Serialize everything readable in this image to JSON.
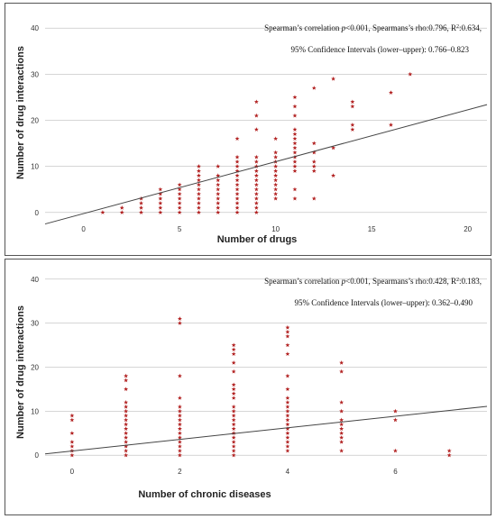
{
  "chart_data": [
    {
      "type": "scatter",
      "xlabel": "Number of drugs",
      "ylabel": "Number of drug interactions",
      "xlim": [
        -2,
        21
      ],
      "ylim": [
        -2,
        42
      ],
      "x_ticks": [
        0,
        5,
        10,
        15,
        20
      ],
      "y_ticks": [
        0,
        10,
        20,
        30,
        40
      ],
      "grid": "horizontal",
      "marker": "star",
      "marker_color": "#b22222",
      "line_color": "#444444",
      "annotation": {
        "line1_a": "Spearman’s correlation ",
        "line1_p": "p",
        "line1_b": "<0.001, Spearmans’s rho:0.796, R",
        "line1_sup": "2",
        "line1_c": ":0.634,",
        "line2": "95% Confidence Intervals (lower–upper): 0.766–0.823"
      },
      "fit_line": {
        "x": [
          -2,
          21
        ],
        "y": [
          -2.5,
          23.4
        ]
      },
      "points": [
        [
          1,
          0
        ],
        [
          2,
          0
        ],
        [
          2,
          1
        ],
        [
          3,
          0
        ],
        [
          3,
          1
        ],
        [
          3,
          2
        ],
        [
          3,
          3
        ],
        [
          4,
          0
        ],
        [
          4,
          1
        ],
        [
          4,
          2
        ],
        [
          4,
          3
        ],
        [
          4,
          4
        ],
        [
          4,
          5
        ],
        [
          5,
          0
        ],
        [
          5,
          1
        ],
        [
          5,
          2
        ],
        [
          5,
          3
        ],
        [
          5,
          4
        ],
        [
          5,
          5
        ],
        [
          5,
          6
        ],
        [
          6,
          0
        ],
        [
          6,
          1
        ],
        [
          6,
          2
        ],
        [
          6,
          3
        ],
        [
          6,
          4
        ],
        [
          6,
          5
        ],
        [
          6,
          6
        ],
        [
          6,
          7
        ],
        [
          6,
          8
        ],
        [
          6,
          9
        ],
        [
          6,
          10
        ],
        [
          7,
          0
        ],
        [
          7,
          1
        ],
        [
          7,
          2
        ],
        [
          7,
          3
        ],
        [
          7,
          4
        ],
        [
          7,
          5
        ],
        [
          7,
          6
        ],
        [
          7,
          7
        ],
        [
          7,
          8
        ],
        [
          7,
          10
        ],
        [
          8,
          0
        ],
        [
          8,
          1
        ],
        [
          8,
          2
        ],
        [
          8,
          3
        ],
        [
          8,
          4
        ],
        [
          8,
          5
        ],
        [
          8,
          6
        ],
        [
          8,
          7
        ],
        [
          8,
          8
        ],
        [
          8,
          9
        ],
        [
          8,
          10
        ],
        [
          8,
          11
        ],
        [
          8,
          12
        ],
        [
          8,
          16
        ],
        [
          9,
          0
        ],
        [
          9,
          1
        ],
        [
          9,
          2
        ],
        [
          9,
          3
        ],
        [
          9,
          4
        ],
        [
          9,
          5
        ],
        [
          9,
          6
        ],
        [
          9,
          7
        ],
        [
          9,
          8
        ],
        [
          9,
          9
        ],
        [
          9,
          10
        ],
        [
          9,
          11
        ],
        [
          9,
          12
        ],
        [
          9,
          18
        ],
        [
          9,
          21
        ],
        [
          9,
          24
        ],
        [
          10,
          3
        ],
        [
          10,
          4
        ],
        [
          10,
          5
        ],
        [
          10,
          6
        ],
        [
          10,
          7
        ],
        [
          10,
          8
        ],
        [
          10,
          9
        ],
        [
          10,
          10
        ],
        [
          10,
          11
        ],
        [
          10,
          12
        ],
        [
          10,
          13
        ],
        [
          10,
          16
        ],
        [
          11,
          3
        ],
        [
          11,
          5
        ],
        [
          11,
          9
        ],
        [
          11,
          10
        ],
        [
          11,
          11
        ],
        [
          11,
          12
        ],
        [
          11,
          13
        ],
        [
          11,
          14
        ],
        [
          11,
          15
        ],
        [
          11,
          16
        ],
        [
          11,
          17
        ],
        [
          11,
          18
        ],
        [
          11,
          21
        ],
        [
          11,
          23
        ],
        [
          11,
          25
        ],
        [
          12,
          3
        ],
        [
          12,
          9
        ],
        [
          12,
          10
        ],
        [
          12,
          11
        ],
        [
          12,
          13
        ],
        [
          12,
          15
        ],
        [
          12,
          27
        ],
        [
          13,
          8
        ],
        [
          13,
          14
        ],
        [
          13,
          29
        ],
        [
          14,
          18
        ],
        [
          14,
          19
        ],
        [
          14,
          23
        ],
        [
          14,
          24
        ],
        [
          16,
          19
        ],
        [
          16,
          26
        ],
        [
          17,
          30
        ]
      ]
    },
    {
      "type": "scatter",
      "xlabel": "Number of chronic diseases",
      "ylabel": "Number of drug interactions",
      "xlim": [
        -0.5,
        7.7
      ],
      "ylim": [
        -2,
        42
      ],
      "x_ticks": [
        0,
        2,
        4,
        6
      ],
      "y_ticks": [
        0,
        10,
        20,
        30,
        40
      ],
      "grid": "horizontal",
      "marker": "star",
      "marker_color": "#b22222",
      "line_color": "#444444",
      "annotation": {
        "line1_a": "Spearman’s correlation ",
        "line1_p": "p",
        "line1_b": "<0.001, Spearmans’s rho:0.428, R",
        "line1_sup": "2",
        "line1_c": ":0.183,",
        "line2": "95% Confidence Intervals (lower–upper): 0.362–0.490"
      },
      "fit_line": {
        "x": [
          -0.5,
          7.7
        ],
        "y": [
          0.3,
          11.1
        ]
      },
      "points": [
        [
          0,
          0
        ],
        [
          0,
          1
        ],
        [
          0,
          2
        ],
        [
          0,
          3
        ],
        [
          0,
          5
        ],
        [
          0,
          8
        ],
        [
          0,
          9
        ],
        [
          1,
          0
        ],
        [
          1,
          1
        ],
        [
          1,
          2
        ],
        [
          1,
          3
        ],
        [
          1,
          4
        ],
        [
          1,
          5
        ],
        [
          1,
          6
        ],
        [
          1,
          7
        ],
        [
          1,
          8
        ],
        [
          1,
          9
        ],
        [
          1,
          10
        ],
        [
          1,
          11
        ],
        [
          1,
          12
        ],
        [
          1,
          15
        ],
        [
          1,
          17
        ],
        [
          1,
          18
        ],
        [
          2,
          0
        ],
        [
          2,
          1
        ],
        [
          2,
          2
        ],
        [
          2,
          3
        ],
        [
          2,
          4
        ],
        [
          2,
          5
        ],
        [
          2,
          6
        ],
        [
          2,
          7
        ],
        [
          2,
          8
        ],
        [
          2,
          9
        ],
        [
          2,
          10
        ],
        [
          2,
          11
        ],
        [
          2,
          13
        ],
        [
          2,
          18
        ],
        [
          2,
          30
        ],
        [
          2,
          31
        ],
        [
          3,
          0
        ],
        [
          3,
          1
        ],
        [
          3,
          2
        ],
        [
          3,
          3
        ],
        [
          3,
          4
        ],
        [
          3,
          5
        ],
        [
          3,
          6
        ],
        [
          3,
          7
        ],
        [
          3,
          8
        ],
        [
          3,
          9
        ],
        [
          3,
          10
        ],
        [
          3,
          11
        ],
        [
          3,
          13
        ],
        [
          3,
          14
        ],
        [
          3,
          15
        ],
        [
          3,
          16
        ],
        [
          3,
          19
        ],
        [
          3,
          21
        ],
        [
          3,
          23
        ],
        [
          3,
          24
        ],
        [
          3,
          25
        ],
        [
          4,
          1
        ],
        [
          4,
          2
        ],
        [
          4,
          3
        ],
        [
          4,
          4
        ],
        [
          4,
          5
        ],
        [
          4,
          6
        ],
        [
          4,
          7
        ],
        [
          4,
          8
        ],
        [
          4,
          9
        ],
        [
          4,
          10
        ],
        [
          4,
          11
        ],
        [
          4,
          12
        ],
        [
          4,
          13
        ],
        [
          4,
          15
        ],
        [
          4,
          18
        ],
        [
          4,
          23
        ],
        [
          4,
          25
        ],
        [
          4,
          27
        ],
        [
          4,
          28
        ],
        [
          4,
          29
        ],
        [
          5,
          1
        ],
        [
          5,
          3
        ],
        [
          5,
          4
        ],
        [
          5,
          5
        ],
        [
          5,
          6
        ],
        [
          5,
          7
        ],
        [
          5,
          8
        ],
        [
          5,
          10
        ],
        [
          5,
          12
        ],
        [
          5,
          19
        ],
        [
          5,
          21
        ],
        [
          6,
          1
        ],
        [
          6,
          8
        ],
        [
          6,
          10
        ],
        [
          7,
          0
        ],
        [
          7,
          1
        ]
      ]
    }
  ]
}
